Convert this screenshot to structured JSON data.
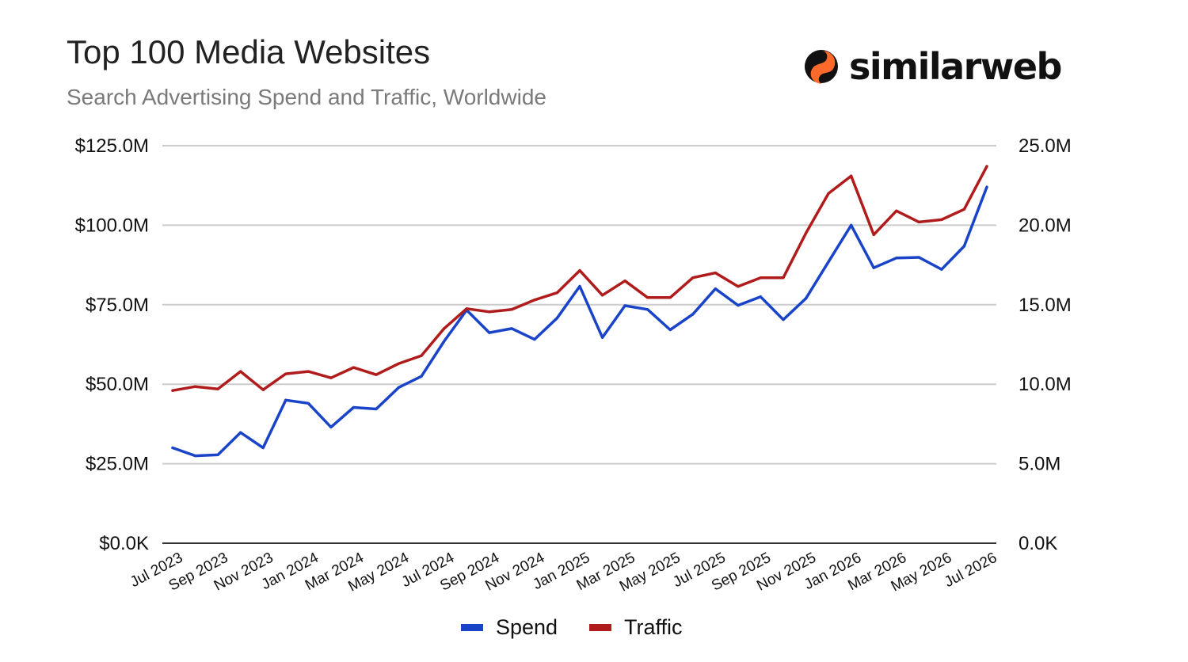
{
  "title": "Top 100 Media Websites",
  "subtitle": "Search Advertising Spend and Traffic, Worldwide",
  "brand": {
    "name": "similarweb",
    "icon": "similarweb-logo-icon",
    "colors": [
      "#ff6a2b",
      "#111111"
    ]
  },
  "chart_data": {
    "type": "line",
    "title": "Top 100 Media Websites",
    "subtitle": "Search Advertising Spend and Traffic, Worldwide",
    "x": [
      "2023-07",
      "2023-08",
      "2023-09",
      "2023-10",
      "2023-11",
      "2023-12",
      "2024-01",
      "2024-02",
      "2024-03",
      "2024-04",
      "2024-05",
      "2024-06",
      "2024-07",
      "2024-08",
      "2024-09",
      "2024-10",
      "2024-11",
      "2024-12",
      "2025-01",
      "2025-02",
      "2025-03",
      "2025-04",
      "2025-05",
      "2025-06",
      "2025-07",
      "2025-08",
      "2025-09",
      "2025-10",
      "2025-11",
      "2025-12",
      "2026-01",
      "2026-02",
      "2026-03",
      "2026-04",
      "2026-05",
      "2026-06",
      "2026-07"
    ],
    "x_tick_labels": [
      "Jul 2023",
      "Sep 2023",
      "Nov 2023",
      "Jan 2024",
      "Mar 2024",
      "May 2024",
      "Jul 2024",
      "Sep 2024",
      "Nov 2024",
      "Jan 2025",
      "Mar 2025",
      "May 2025",
      "Jul 2025",
      "Sep 2025",
      "Nov 2025",
      "Jan 2026",
      "Mar 2026",
      "May 2026",
      "Jul 2026"
    ],
    "x_tick_every": 2,
    "left_axis": {
      "ylim": [
        0,
        125000000
      ],
      "tick_values": [
        0,
        25000000,
        50000000,
        75000000,
        100000000,
        125000000
      ],
      "tick_labels": [
        "$0.0K",
        "$25.0M",
        "$50.0M",
        "$75.0M",
        "$100.0M",
        "$125.0M"
      ]
    },
    "right_axis": {
      "ylim": [
        0,
        25000000
      ],
      "tick_values": [
        0,
        5000000,
        10000000,
        15000000,
        20000000,
        25000000
      ],
      "tick_labels": [
        "0.0K",
        "5.0M",
        "10.0M",
        "15.0M",
        "20.0M",
        "25.0M"
      ]
    },
    "grid": true,
    "legend": "bottom",
    "series": [
      {
        "name": "Spend",
        "axis": "left",
        "color": "#1a44c8",
        "values": [
          30000000,
          27500000,
          27800000,
          34800000,
          30000000,
          45000000,
          44000000,
          36500000,
          42700000,
          42200000,
          49000000,
          52500000,
          63500000,
          73300000,
          66200000,
          67500000,
          64100000,
          70800000,
          80800000,
          64700000,
          74700000,
          73500000,
          67100000,
          72000000,
          80000000,
          74800000,
          77500000,
          70300000,
          77000000,
          88500000,
          100000000,
          86600000,
          89700000,
          89900000,
          86100000,
          93400000,
          112000000
        ]
      },
      {
        "name": "Traffic",
        "axis": "right",
        "color": "#b01c1c",
        "values": [
          9600000,
          9850000,
          9700000,
          10800000,
          9650000,
          10650000,
          10800000,
          10400000,
          11050000,
          10600000,
          11300000,
          11800000,
          13500000,
          14750000,
          14550000,
          14700000,
          15300000,
          15750000,
          17150000,
          15600000,
          16500000,
          15450000,
          15450000,
          16700000,
          17000000,
          16150000,
          16700000,
          16700000,
          19500000,
          22000000,
          23100000,
          19400000,
          20900000,
          20200000,
          20350000,
          21000000,
          23700000
        ]
      }
    ]
  }
}
